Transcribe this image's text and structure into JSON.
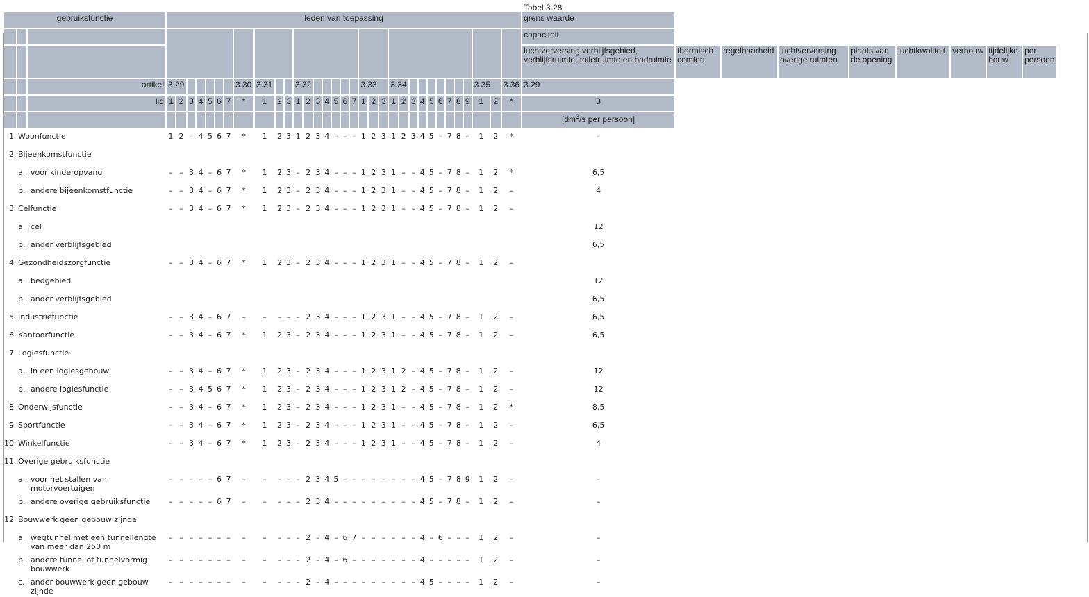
{
  "table_title": "Tabel 3.28",
  "header": {
    "gebruiksfunctie": "gebruiksfunctie",
    "leden": "leden van toepassing",
    "grens_waarde": "grens waarde",
    "capaciteit": "capaciteit",
    "luchtverversing": "luchtverversing verblijfsgebied, verblijfsruimte, toiletruimte en badruimte",
    "extra_columns": [
      "thermisch comfort",
      "regelbaarheid",
      "luchtverversing overige ruimten",
      "plaats van de opening",
      "luchtkwaliteit",
      "verbouw",
      "tijdelijke bouw",
      "per persoon"
    ],
    "artikel_label": "artikel",
    "lid_label": "lid",
    "grens_artikel": "3.29",
    "grens_lid": "3",
    "unit_prefix": "[dm",
    "unit_sup": "3",
    "unit_suffix": "/s per persoon]"
  },
  "articles": [
    {
      "artikel": "3.29",
      "span": 2,
      "lids": [
        "1",
        "2",
        "3",
        "4",
        "5",
        "6",
        "7"
      ]
    },
    {
      "artikel": "3.30",
      "span": 1,
      "lids": [
        "*"
      ]
    },
    {
      "artikel": "3.31",
      "span": 1,
      "lids": [
        "1",
        "2",
        "3"
      ]
    },
    {
      "artikel": "3.32",
      "span": 2,
      "lids": [
        "1",
        "2",
        "3",
        "4",
        "5",
        "6",
        "7"
      ]
    },
    {
      "artikel": "3.33",
      "span": 3,
      "lids": [
        "1",
        "2",
        "3"
      ]
    },
    {
      "artikel": "3.34",
      "span": 2,
      "lids": [
        "1",
        "2",
        "3",
        "4",
        "5",
        "6",
        "7",
        "8",
        "9"
      ]
    },
    {
      "artikel": "3.35",
      "span": 2,
      "lids": [
        "1",
        "2"
      ]
    },
    {
      "artikel": "3.36",
      "span": 1,
      "lids": [
        "*"
      ]
    }
  ],
  "rows": [
    {
      "num": "1",
      "label": "Woonfunctie",
      "values": "1 2 – 4 5 6 7 * 1 2 3 1 2 3 4 – – – 1 2 3 1 2 3 4 5 – 7 8 – 1 2 *",
      "grens": "–"
    },
    {
      "num": "2",
      "label": "Bijeenkomstfunctie",
      "values": "",
      "grens": ""
    },
    {
      "sub": "a.",
      "label": "voor kinderopvang",
      "values": "– – 3 4 – 6 7 * 1 2 3 – 2 3 4 – – – 1 2 3 1 – – 4 5 – 7 8 – 1 2 *",
      "grens": "6,5"
    },
    {
      "sub": "b.",
      "label": "andere bijeenkomstfunctie",
      "values": "– – 3 4 – 6 7 * 1 2 3 – 2 3 4 – – – 1 2 3 1 – – 4 5 – 7 8 – 1 2 –",
      "grens": "4"
    },
    {
      "num": "3",
      "label": "Celfunctie",
      "values": "– – 3 4 – 6 7 * 1 2 3 – 2 3 4 – – – 1 2 3 1 – – 4 5 – 7 8 – 1 2 –",
      "grens": ""
    },
    {
      "sub": "a.",
      "label": "cel",
      "values": "",
      "grens": "12"
    },
    {
      "sub": "b.",
      "label": "ander verblijfsgebied",
      "values": "",
      "grens": "6,5"
    },
    {
      "num": "4",
      "label": "Gezondheidszorgfunctie",
      "values": "– – 3 4 – 6 7 * 1 2 3 – 2 3 4 – – – 1 2 3 1 – – 4 5 – 7 8 – 1 2 –",
      "grens": ""
    },
    {
      "sub": "a.",
      "label": "bedgebied",
      "values": "",
      "grens": "12"
    },
    {
      "sub": "b.",
      "label": "ander verblijfsgebied",
      "values": "",
      "grens": "6,5"
    },
    {
      "num": "5",
      "label": "Industriefunctie",
      "values": "– – 3 4 – 6 7 – – – – – 2 3 4 – – – 1 2 3 1 – – 4 5 – 7 8 – 1 2 –",
      "grens": "6,5"
    },
    {
      "num": "6",
      "label": "Kantoorfunctie",
      "values": "– – 3 4 – 6 7 * 1 2 3 – 2 3 4 – – – 1 2 3 1 – – 4 5 – 7 8 – 1 2 –",
      "grens": "6,5"
    },
    {
      "num": "7",
      "label": "Logiesfunctie",
      "values": "",
      "grens": ""
    },
    {
      "sub": "a.",
      "label": "in een logiesgebouw",
      "values": "– – 3 4 – 6 7 * 1 2 3 – 2 3 4 – – – 1 2 3 1 2 – 4 5 – 7 8 – 1 2 –",
      "grens": "12"
    },
    {
      "sub": "b.",
      "label": "andere logiesfunctie",
      "values": "– – 3 4 5 6 7 * 1 2 3 – 2 3 4 – – – 1 2 3 1 2 – 4 5 – 7 8 – 1 2 –",
      "grens": "12"
    },
    {
      "num": "8",
      "label": "Onderwijsfunctie",
      "values": "– – 3 4 – 6 7 * 1 2 3 – 2 3 4 – – – 1 2 3 1 – – 4 5 – 7 8 – 1 2 *",
      "grens": "8,5"
    },
    {
      "num": "9",
      "label": "Sportfunctie",
      "values": "– – 3 4 – 6 7 * 1 2 3 – 2 3 4 – – – 1 2 3 1 – – 4 5 – 7 8 – 1 2 –",
      "grens": "6,5"
    },
    {
      "num": "10",
      "label": "Winkelfunctie",
      "values": "– – 3 4 – 6 7 * 1 2 3 – 2 3 4 – – – 1 2 3 1 – – 4 5 – 7 8 – 1 2 –",
      "grens": "4"
    },
    {
      "num": "11",
      "label": "Overige gebruiksfunctie",
      "values": "",
      "grens": ""
    },
    {
      "sub": "a.",
      "label": "voor het stallen van motorvoertuigen",
      "values": "– – – – – 6 7 – – – – – 2 3 4 5 – – – – – – – – 4 5 – 7 8 9 1 2 –",
      "grens": "–"
    },
    {
      "sub": "b.",
      "label": "andere overige gebruiksfunctie",
      "values": "– – – – – 6 7 – – – – – 2 3 4 – – – – – – – – – 4 5 – 7 8 – 1 2 –",
      "grens": "–"
    },
    {
      "num": "12",
      "label": "Bouwwerk geen gebouw zijnde",
      "values": "",
      "grens": ""
    },
    {
      "sub": "a.",
      "label": "wegtunnel met een tunnellengte van meer dan 250 m",
      "values": "– – – – – – – – – – – – 2 – 4 – 6 7 – – – – – – 4 – 6 – – – 1 2 –",
      "grens": "–"
    },
    {
      "sub": "b.",
      "label": "andere tunnel of tunnelvormig bouwwerk",
      "values": "– – – – – – – – – – – – 2 – 4 – 6 – – – – – – – 4 – – – – – 1 2 –",
      "grens": "–"
    },
    {
      "sub": "c.",
      "label": "ander bouwwerk geen gebouw zijnde",
      "values": "– – – – – – – – – – – – 2 – 4 – – – – – – – – – 4 5 – – – – 1 2 –",
      "grens": "–"
    }
  ]
}
